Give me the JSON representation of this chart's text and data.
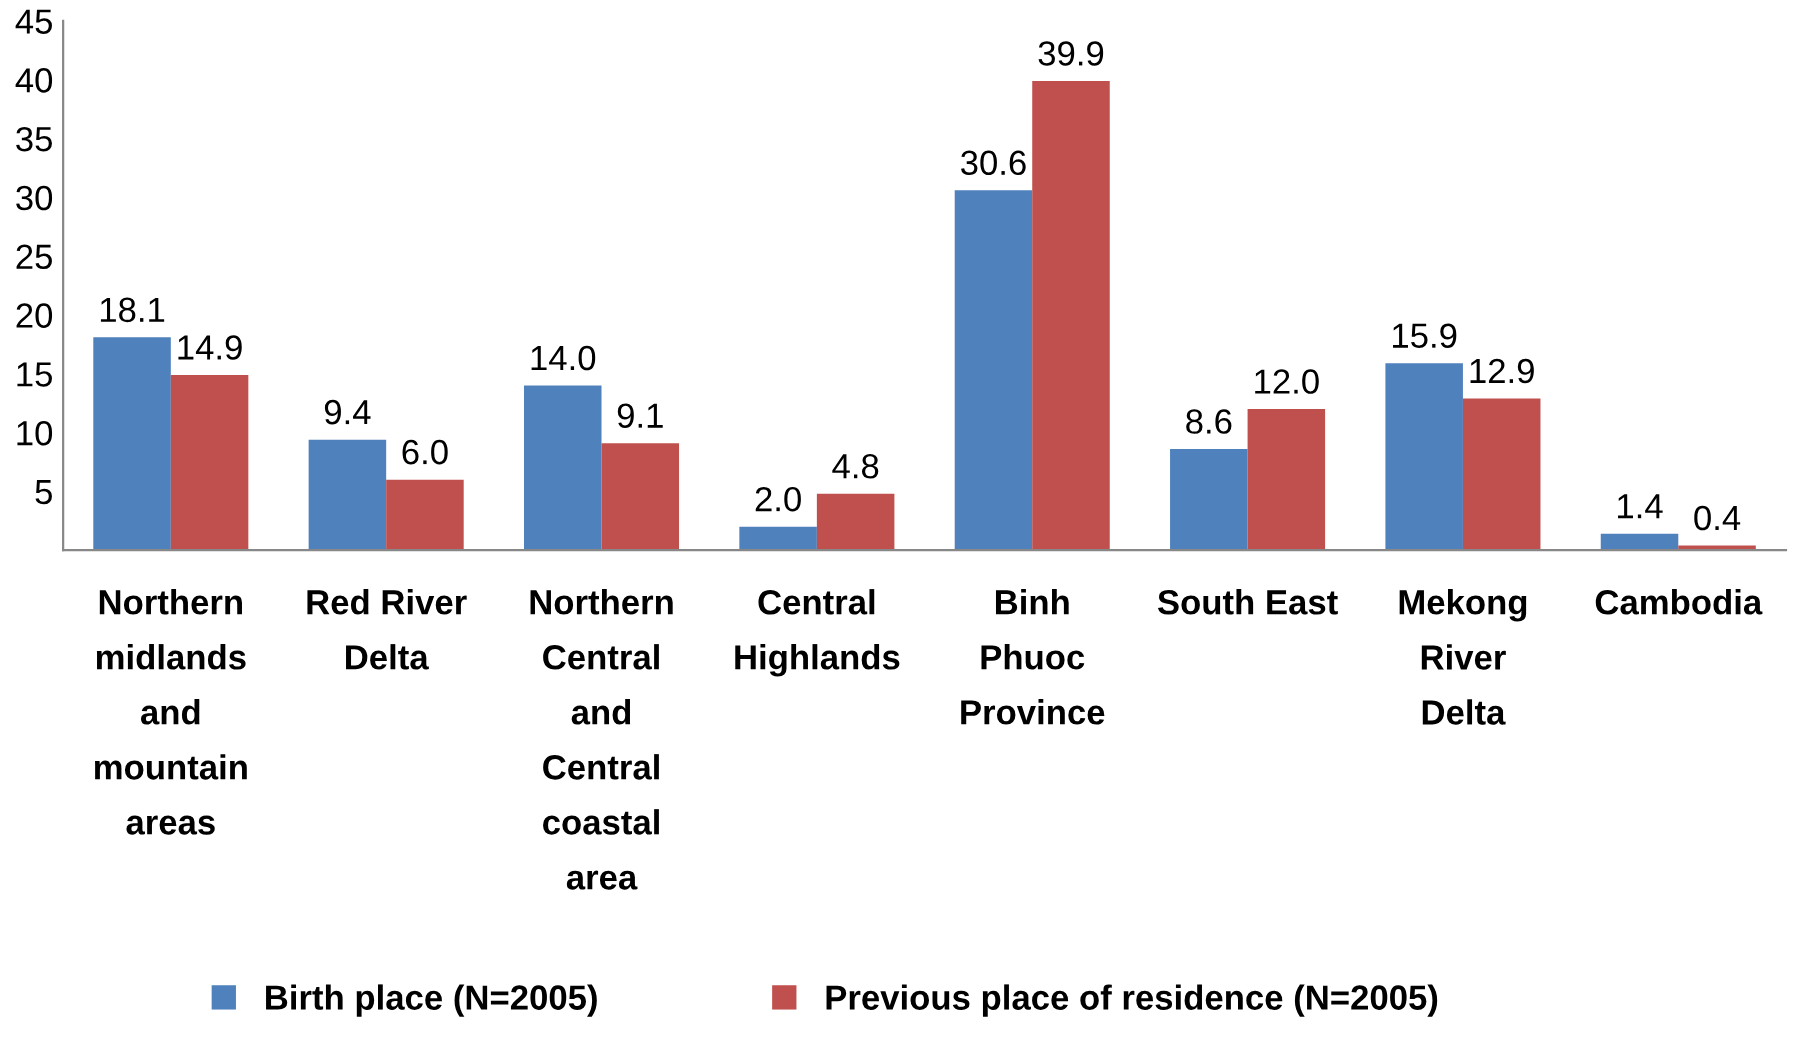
{
  "chart_data": {
    "type": "bar",
    "categories": [
      "Northern\nmidlands\nand\nmountain\nareas",
      "Red River\nDelta",
      "Northern\nCentral\nand\nCentral\ncoastal\narea",
      "Central\nHighlands",
      "Binh\nPhuoc\nProvince",
      "South East",
      "Mekong\nRiver\nDelta",
      "Cambodia"
    ],
    "series": [
      {
        "name": "Birth place (N=2005)",
        "color": "#4f81bd",
        "values": [
          18.1,
          9.4,
          14.0,
          2.0,
          30.6,
          8.6,
          15.9,
          1.4
        ],
        "value_labels": [
          "18.1",
          "9.4",
          "14.0",
          "2.0",
          "30.6",
          "8.6",
          "15.9",
          "1.4"
        ]
      },
      {
        "name": "Previous place of residence (N=2005)",
        "color": "#c0504d",
        "values": [
          14.9,
          6.0,
          9.1,
          4.8,
          39.9,
          12.0,
          12.9,
          0.4
        ],
        "value_labels": [
          "14.9",
          "6.0",
          "9.1",
          "4.8",
          "39.9",
          "12.0",
          "12.9",
          "0.4"
        ]
      }
    ],
    "ylim": [
      0,
      45
    ],
    "yticks": [
      5,
      10,
      15,
      20,
      25,
      30,
      35,
      40,
      45
    ],
    "grid": false,
    "legend": "bottom"
  }
}
